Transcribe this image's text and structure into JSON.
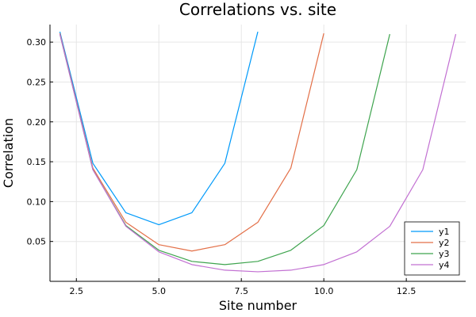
{
  "chart_data": {
    "type": "line",
    "title": "Correlations vs. site",
    "xlabel": "Site number",
    "ylabel": "Correlation",
    "xlim": [
      1.7,
      14.3
    ],
    "ylim": [
      0.0,
      0.322
    ],
    "xticks": [
      2.5,
      5.0,
      7.5,
      10.0,
      12.5
    ],
    "xtick_labels": [
      "2.5",
      "5.0",
      "7.5",
      "10.0",
      "12.5"
    ],
    "yticks": [
      0.05,
      0.1,
      0.15,
      0.2,
      0.25,
      0.3
    ],
    "ytick_labels": [
      "0.05",
      "0.10",
      "0.15",
      "0.20",
      "0.25",
      "0.30"
    ],
    "grid": true,
    "legend_position": "bottom-right",
    "series": [
      {
        "name": "y1",
        "color": "#009AFA",
        "x": [
          2,
          3,
          4,
          5,
          6,
          7,
          8
        ],
        "y": [
          0.313,
          0.148,
          0.086,
          0.071,
          0.086,
          0.148,
          0.313
        ]
      },
      {
        "name": "y2",
        "color": "#E36F47",
        "x": [
          2,
          3,
          4,
          5,
          6,
          7,
          8,
          9,
          10
        ],
        "y": [
          0.311,
          0.142,
          0.074,
          0.046,
          0.038,
          0.046,
          0.074,
          0.142,
          0.311
        ]
      },
      {
        "name": "y3",
        "color": "#3EA44E",
        "x": [
          2,
          3,
          4,
          5,
          6,
          7,
          8,
          9,
          10,
          11,
          12
        ],
        "y": [
          0.31,
          0.14,
          0.07,
          0.039,
          0.025,
          0.021,
          0.025,
          0.039,
          0.07,
          0.14,
          0.31
        ]
      },
      {
        "name": "y4",
        "color": "#C270D2",
        "x": [
          2,
          3,
          4,
          5,
          6,
          7,
          8,
          9,
          10,
          11,
          12,
          13,
          14
        ],
        "y": [
          0.31,
          0.14,
          0.069,
          0.037,
          0.021,
          0.014,
          0.012,
          0.014,
          0.021,
          0.037,
          0.069,
          0.14,
          0.31
        ]
      }
    ]
  }
}
